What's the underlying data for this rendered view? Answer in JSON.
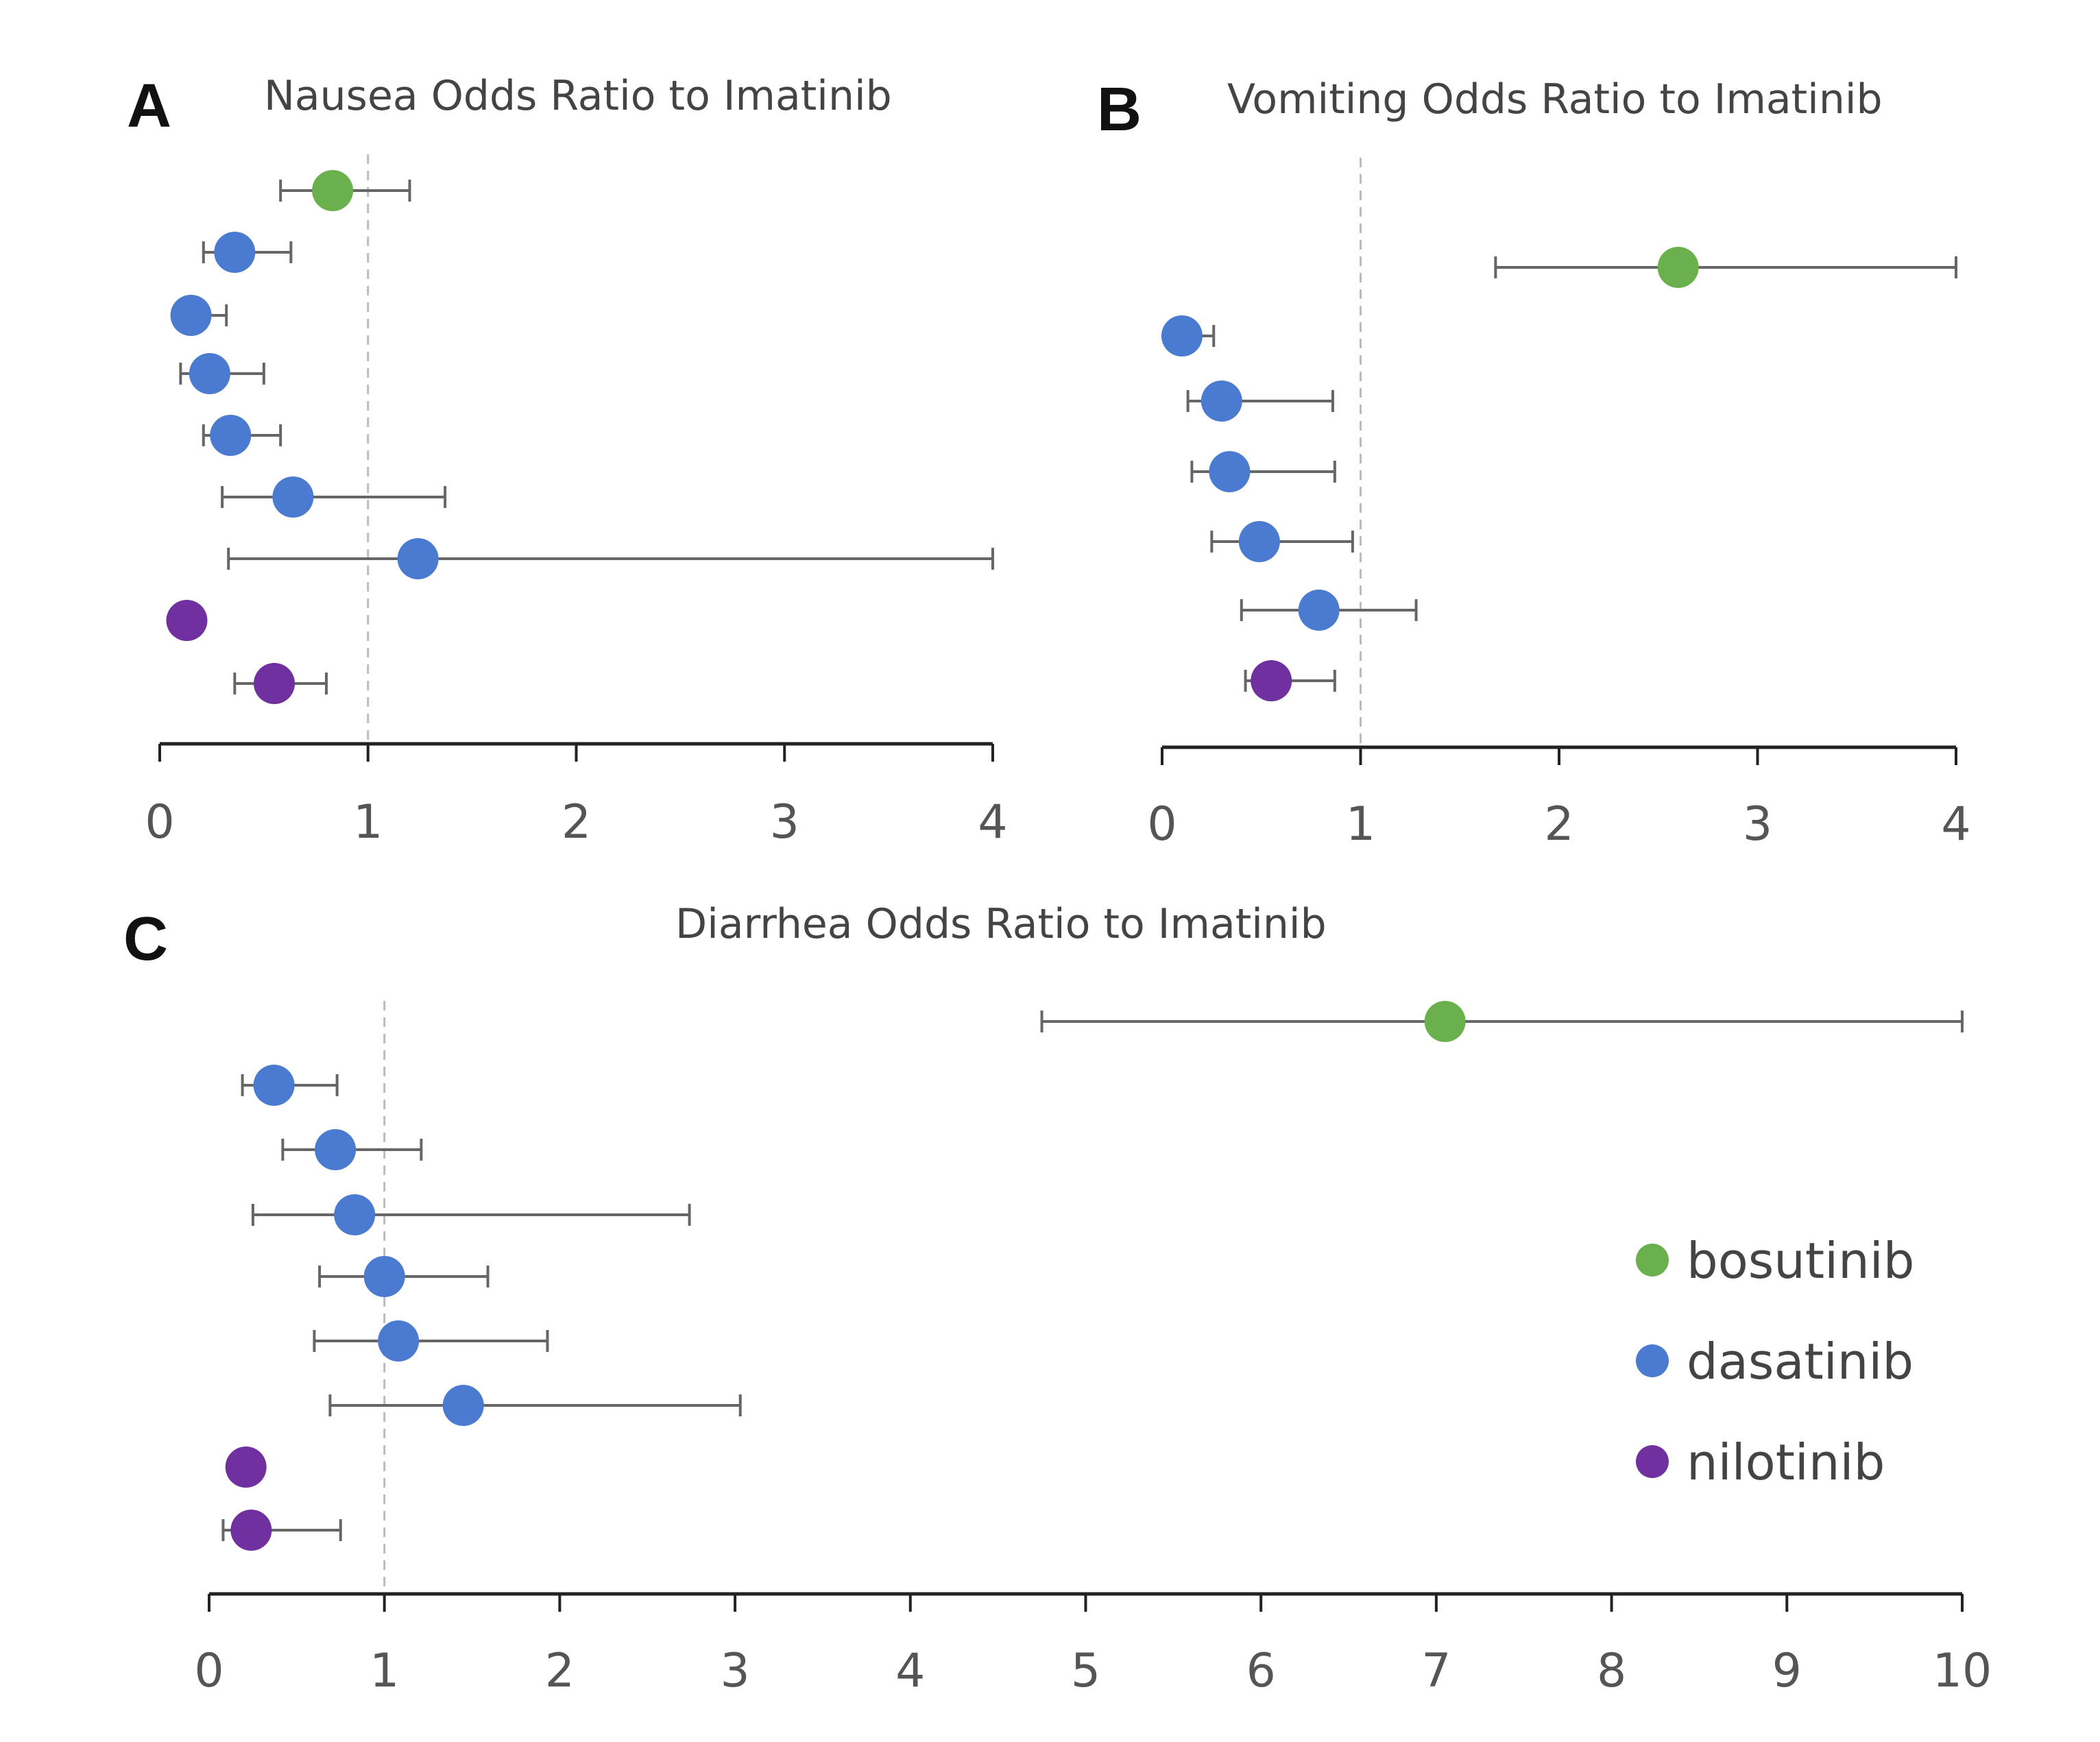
{
  "colors": {
    "bosutinib": "#6ab04c",
    "dasatinib": "#4a7bd0",
    "nilotinib": "#7030a0",
    "axis": "#222222",
    "errorbar": "#666666",
    "refline": "#bbbbbb"
  },
  "legend": [
    {
      "label": "bosutinib",
      "drug": "bosutinib"
    },
    {
      "label": "dasatinib",
      "drug": "dasatinib"
    },
    {
      "label": "nilotinib",
      "drug": "nilotinib"
    }
  ],
  "chart_data": [
    {
      "type": "scatter",
      "panel": "A",
      "title": "Nausea Odds Ratio to Imatinib",
      "xlim": [
        0,
        4
      ],
      "xticks": [
        "0",
        "1",
        "2",
        "3",
        "4"
      ],
      "reference_line": 1,
      "points": [
        {
          "drug": "bosutinib",
          "or": 0.83,
          "lo": 0.58,
          "hi": 1.2
        },
        {
          "drug": "dasatinib",
          "or": 0.36,
          "lo": 0.21,
          "hi": 0.63
        },
        {
          "drug": "dasatinib",
          "or": 0.15,
          "lo": 0.1,
          "hi": 0.32
        },
        {
          "drug": "dasatinib",
          "or": 0.24,
          "lo": 0.1,
          "hi": 0.5
        },
        {
          "drug": "dasatinib",
          "or": 0.34,
          "lo": 0.21,
          "hi": 0.58
        },
        {
          "drug": "dasatinib",
          "or": 0.64,
          "lo": 0.3,
          "hi": 1.37
        },
        {
          "drug": "dasatinib",
          "or": 1.24,
          "lo": 0.33,
          "hi": 4
        },
        {
          "drug": "nilotinib",
          "or": 0.13,
          "lo": null,
          "hi": null
        },
        {
          "drug": "nilotinib",
          "or": 0.55,
          "lo": 0.36,
          "hi": 0.8
        }
      ]
    },
    {
      "type": "scatter",
      "panel": "B",
      "title": "Vomiting Odds Ratio to Imatinib",
      "xlim": [
        0,
        4
      ],
      "xticks": [
        "0",
        "1",
        "2",
        "3",
        "4"
      ],
      "reference_line": 1,
      "points": [
        {
          "drug": "bosutinib",
          "or": 2.6,
          "lo": 1.68,
          "hi": 4
        },
        {
          "drug": "dasatinib",
          "or": 0.1,
          "lo": 0.06,
          "hi": 0.26
        },
        {
          "drug": "dasatinib",
          "or": 0.3,
          "lo": 0.13,
          "hi": 0.86
        },
        {
          "drug": "dasatinib",
          "or": 0.34,
          "lo": 0.15,
          "hi": 0.87
        },
        {
          "drug": "dasatinib",
          "or": 0.49,
          "lo": 0.25,
          "hi": 0.96
        },
        {
          "drug": "dasatinib",
          "or": 0.79,
          "lo": 0.4,
          "hi": 1.28
        },
        {
          "drug": "nilotinib",
          "or": 0.55,
          "lo": 0.42,
          "hi": 0.87
        }
      ]
    },
    {
      "type": "scatter",
      "panel": "C",
      "title": "Diarrhea Odds Ratio to Imatinib",
      "xlim": [
        0,
        10
      ],
      "xticks": [
        "0",
        "1",
        "2",
        "3",
        "4",
        "5",
        "6",
        "7",
        "8",
        "9",
        "10"
      ],
      "reference_line": 1,
      "points": [
        {
          "drug": "bosutinib",
          "or": 7.05,
          "lo": 4.75,
          "hi": 10
        },
        {
          "drug": "dasatinib",
          "or": 0.37,
          "lo": 0.19,
          "hi": 0.73
        },
        {
          "drug": "dasatinib",
          "or": 0.72,
          "lo": 0.42,
          "hi": 1.21
        },
        {
          "drug": "dasatinib",
          "or": 0.83,
          "lo": 0.25,
          "hi": 2.74
        },
        {
          "drug": "dasatinib",
          "or": 1.0,
          "lo": 0.63,
          "hi": 1.59
        },
        {
          "drug": "dasatinib",
          "or": 1.08,
          "lo": 0.6,
          "hi": 1.93
        },
        {
          "drug": "dasatinib",
          "or": 1.45,
          "lo": 0.69,
          "hi": 3.03
        },
        {
          "drug": "nilotinib",
          "or": 0.21,
          "lo": null,
          "hi": null
        },
        {
          "drug": "nilotinib",
          "or": 0.24,
          "lo": 0.08,
          "hi": 0.75
        }
      ]
    }
  ]
}
